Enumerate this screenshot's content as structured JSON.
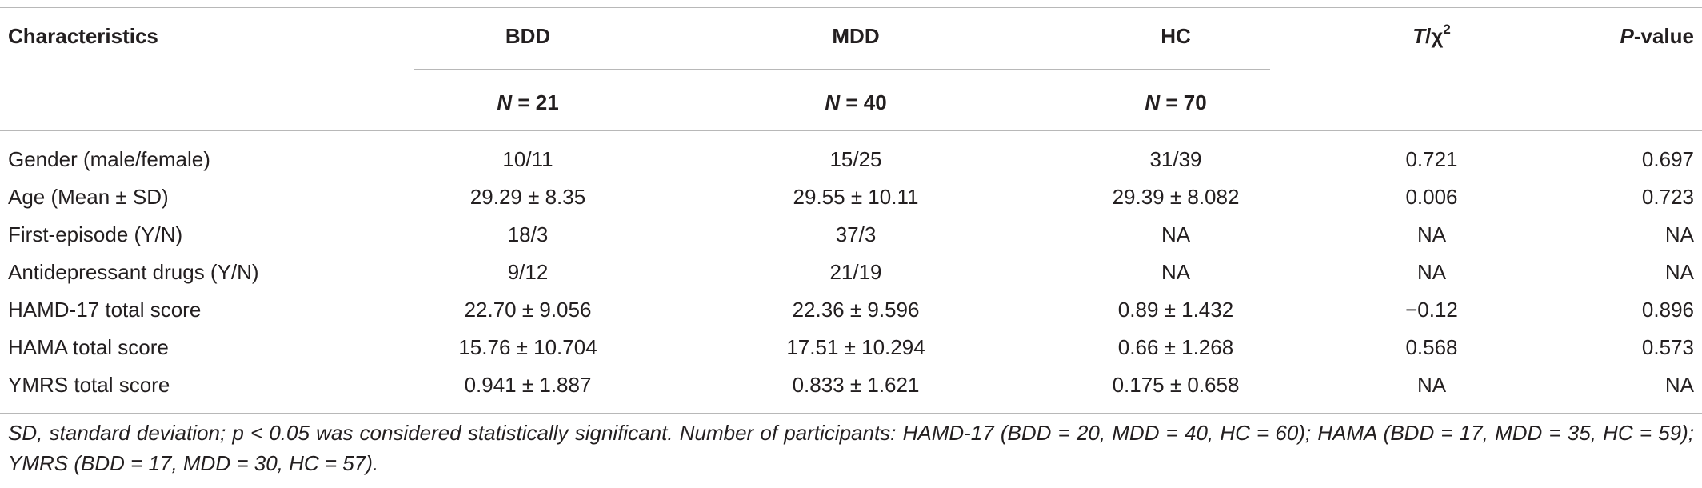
{
  "header": {
    "characteristics": "Characteristics",
    "bdd": "BDD",
    "mdd": "MDD",
    "hc": "HC",
    "stat_italic": "T",
    "stat_rest": "/χ",
    "stat_sup": "2",
    "p_italic": "P",
    "p_rest": "-value",
    "n_symbol": "N",
    "bdd_n": " = 21",
    "mdd_n": " = 40",
    "hc_n": " = 70"
  },
  "rows": [
    {
      "label": "Gender (male/female)",
      "bdd": "10/11",
      "mdd": "15/25",
      "hc": "31/39",
      "stat": "0.721",
      "p": "0.697"
    },
    {
      "label": "Age (Mean ± SD)",
      "bdd": "29.29 ± 8.35",
      "mdd": "29.55 ± 10.11",
      "hc": "29.39 ± 8.082",
      "stat": "0.006",
      "p": "0.723"
    },
    {
      "label": "First-episode (Y/N)",
      "bdd": "18/3",
      "mdd": "37/3",
      "hc": "NA",
      "stat": "NA",
      "p": "NA"
    },
    {
      "label": "Antidepressant drugs (Y/N)",
      "bdd": "9/12",
      "mdd": "21/19",
      "hc": "NA",
      "stat": "NA",
      "p": "NA"
    },
    {
      "label": "HAMD-17 total score",
      "bdd": "22.70 ± 9.056",
      "mdd": "22.36 ± 9.596",
      "hc": "0.89 ± 1.432",
      "stat": "−0.12",
      "p": "0.896"
    },
    {
      "label": "HAMA total score",
      "bdd": "15.76 ± 10.704",
      "mdd": "17.51 ± 10.294",
      "hc": "0.66 ± 1.268",
      "stat": "0.568",
      "p": "0.573"
    },
    {
      "label": "YMRS total score",
      "bdd": "0.941 ± 1.887",
      "mdd": "0.833 ± 1.621",
      "hc": "0.175 ± 0.658",
      "stat": "NA",
      "p": "NA"
    }
  ],
  "footnote": "SD, standard deviation; p < 0.05 was considered statistically significant. Number of participants: HAMD-17 (BDD = 20, MDD = 40, HC = 60); HAMA (BDD = 17, MDD = 35, HC = 59); YMRS (BDD = 17, MDD = 30, HC = 57)."
}
